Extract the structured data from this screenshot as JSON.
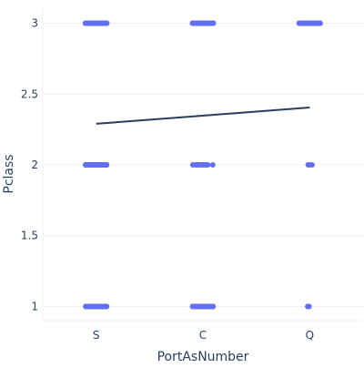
{
  "chart_data": {
    "type": "scatter",
    "title": "",
    "xlabel": "PortAsNumber",
    "ylabel": "Pclass",
    "categories": [
      "S",
      "C",
      "Q"
    ],
    "y_ticks": [
      {
        "value": 1,
        "label": "1"
      },
      {
        "value": 1.5,
        "label": "1.5"
      },
      {
        "value": 2,
        "label": "2"
      },
      {
        "value": 2.5,
        "label": "2.5"
      },
      {
        "value": 3,
        "label": "3"
      }
    ],
    "ylim": [
      0.9,
      3.1
    ],
    "grid": true,
    "legend": "none",
    "jitter_width": 0.2,
    "series": [
      {
        "type": "strip",
        "color": "#636efa",
        "groups": [
          {
            "category": "S",
            "pclass": 1,
            "count": 127
          },
          {
            "category": "S",
            "pclass": 2,
            "count": 164
          },
          {
            "category": "S",
            "pclass": 3,
            "count": 353
          },
          {
            "category": "C",
            "pclass": 1,
            "count": 85
          },
          {
            "category": "C",
            "pclass": 2,
            "count": 17
          },
          {
            "category": "C",
            "pclass": 3,
            "count": 66
          },
          {
            "category": "Q",
            "pclass": 1,
            "count": 2
          },
          {
            "category": "Q",
            "pclass": 2,
            "count": 3
          },
          {
            "category": "Q",
            "pclass": 3,
            "count": 72
          }
        ]
      },
      {
        "type": "trendline",
        "color": "#2a3f5f",
        "x": [
          "S",
          "Q"
        ],
        "y": [
          2.29,
          2.405
        ]
      }
    ]
  }
}
